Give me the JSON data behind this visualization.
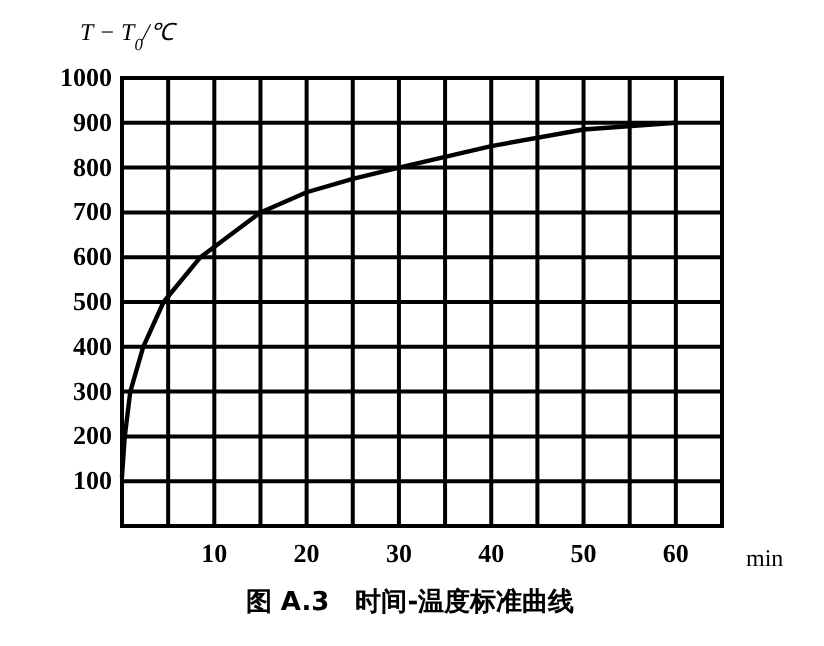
{
  "chart_data": {
    "type": "line",
    "xlabel": "min",
    "ylabel": "T − T$_{0}$/℃",
    "annotations": [
      "图 A.3　时间-温度标准曲线"
    ],
    "x": [
      0,
      0.3,
      0.9,
      2.3,
      4.5,
      8.5,
      15,
      20,
      25,
      30,
      40,
      50,
      60
    ],
    "series": [
      {
        "color": "#000000",
        "values": [
          110,
          200,
          300,
          400,
          500,
          600,
          700,
          745,
          775,
          800,
          848,
          885,
          900
        ]
      }
    ],
    "xlim": [
      0,
      65
    ],
    "ylim": [
      0,
      1000
    ],
    "xticks": [
      {
        "value": 5,
        "label": null
      },
      10,
      {
        "value": 15,
        "label": null
      },
      20,
      {
        "value": 25,
        "label": null
      },
      30,
      {
        "value": 35,
        "label": null
      },
      40,
      {
        "value": 45,
        "label": null
      },
      50,
      {
        "value": 55,
        "label": null
      },
      60
    ],
    "yticks": [
      100,
      200,
      300,
      400,
      500,
      600,
      700,
      800,
      900,
      1000
    ],
    "grid": true
  }
}
